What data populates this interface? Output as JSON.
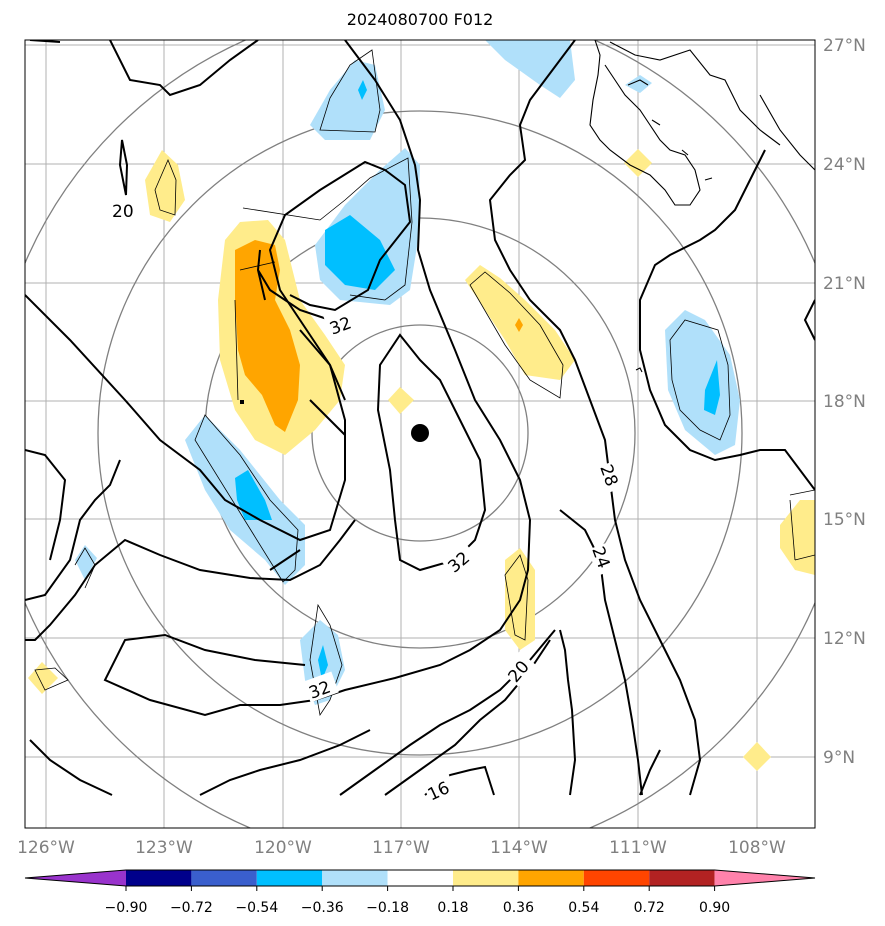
{
  "title": "2024080700 F012",
  "colors": {
    "grid": "#b0b0b0",
    "range_rings": "#808080",
    "contour": "#000000",
    "axis_text": "#808080"
  },
  "lon_ticks": [
    "126°W",
    "123°W",
    "120°W",
    "117°W",
    "114°W",
    "111°W",
    "108°W"
  ],
  "lat_ticks": [
    "27°N",
    "24°N",
    "21°N",
    "18°N",
    "15°N",
    "12°N",
    "9°N"
  ],
  "contour_labels": [
    "20",
    "32",
    "32",
    "32",
    "28",
    "24",
    "20",
    "16"
  ],
  "colorbar": {
    "ticks": [
      "−0.90",
      "−0.72",
      "−0.54",
      "−0.36",
      "−0.18",
      "0.18",
      "0.36",
      "0.54",
      "0.72",
      "0.90"
    ],
    "colors": [
      "#9933cc",
      "#00008b",
      "#3a5fcd",
      "#00bfff",
      "#b0e0fa",
      "#ffffff",
      "#ffec8b",
      "#ffa500",
      "#ff4500",
      "#b22222",
      "#ff82ab"
    ]
  },
  "storm_center_marker": "black-dot"
}
